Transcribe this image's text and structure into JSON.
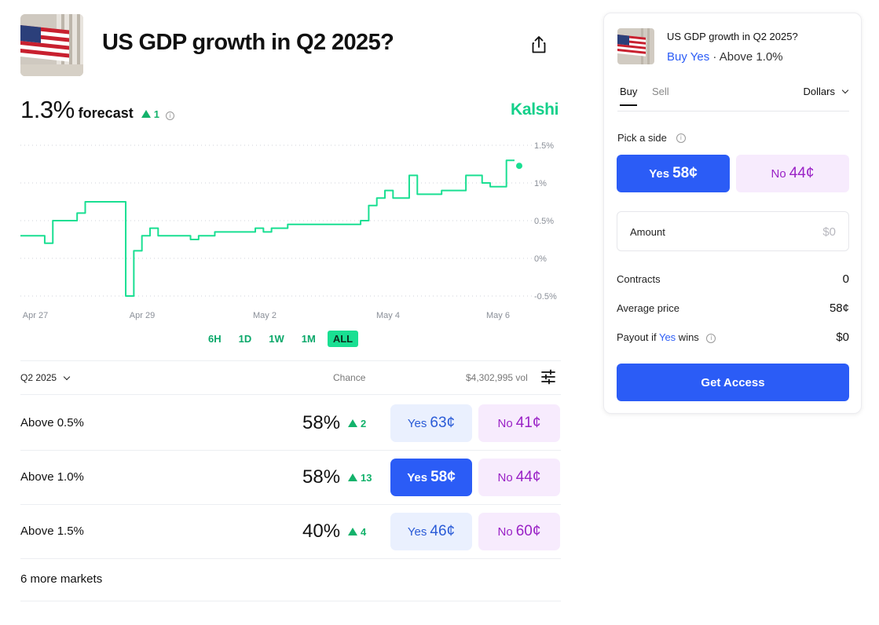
{
  "header": {
    "title": "US GDP growth in Q2 2025?",
    "forecast_value": "1.3%",
    "forecast_label": "forecast",
    "forecast_delta": "1",
    "brand": "Kalshi"
  },
  "chart_data": {
    "type": "line",
    "x_tick_labels": [
      "Apr 27",
      "Apr 29",
      "May 2",
      "May 4",
      "May 6"
    ],
    "y_tick_labels": [
      "1.5%",
      "1%",
      "0.5%",
      "0%",
      "-0.5%"
    ],
    "ylim": [
      -0.5,
      1.5
    ],
    "grid": true,
    "color": "#1adf92",
    "series": [
      {
        "values_pct": [
          0.3,
          0.3,
          0.3,
          0.2,
          0.5,
          0.5,
          0.5,
          0.6,
          0.75,
          0.75,
          0.75,
          0.75,
          0.75,
          -0.5,
          0.1,
          0.3,
          0.4,
          0.3,
          0.3,
          0.3,
          0.3,
          0.25,
          0.3,
          0.3,
          0.35,
          0.35,
          0.35,
          0.35,
          0.35,
          0.4,
          0.35,
          0.4,
          0.4,
          0.45,
          0.45,
          0.45,
          0.45,
          0.45,
          0.45,
          0.45,
          0.45,
          0.45,
          0.5,
          0.7,
          0.8,
          0.9,
          0.8,
          0.8,
          1.1,
          0.85,
          0.85,
          0.85,
          0.9,
          0.9,
          0.9,
          1.1,
          1.1,
          1.0,
          0.95,
          0.95,
          1.3,
          1.3
        ]
      }
    ]
  },
  "ranges": [
    "6H",
    "1D",
    "1W",
    "1M",
    "ALL"
  ],
  "range_active": "ALL",
  "list": {
    "period": "Q2 2025",
    "chance_header": "Chance",
    "volume": "$4,302,995 vol",
    "rows": [
      {
        "name": "Above 0.5%",
        "chance": "58%",
        "delta": "2",
        "yes_label": "Yes",
        "yes_price": "63¢",
        "no_label": "No",
        "no_price": "41¢"
      },
      {
        "name": "Above 1.0%",
        "chance": "58%",
        "delta": "13",
        "yes_label": "Yes",
        "yes_price": "58¢",
        "no_label": "No",
        "no_price": "44¢"
      },
      {
        "name": "Above 1.5%",
        "chance": "40%",
        "delta": "4",
        "yes_label": "Yes",
        "yes_price": "46¢",
        "no_label": "No",
        "no_price": "60¢"
      }
    ],
    "more_markets": "6 more markets"
  },
  "panel": {
    "title": "US GDP growth in Q2 2025?",
    "buy_yes": "Buy Yes",
    "separator": " · ",
    "market": "Above 1.0%",
    "tab_buy": "Buy",
    "tab_sell": "Sell",
    "currency": "Dollars",
    "pick_side": "Pick a side",
    "side_yes_label": "Yes",
    "side_yes_price": "58¢",
    "side_no_label": "No",
    "side_no_price": "44¢",
    "amount_label": "Amount",
    "amount_placeholder": "$0",
    "contracts_label": "Contracts",
    "contracts_value": "0",
    "avg_price_label": "Average price",
    "avg_price_value": "58¢",
    "payout_prefix": "Payout if ",
    "payout_yes": "Yes",
    "payout_suffix": " wins",
    "payout_value": "$0",
    "cta": "Get Access"
  },
  "colors": {
    "accent_green": "#1adf92",
    "brand_blue": "#2b5cf6",
    "no_purple": "#9a22c6"
  }
}
